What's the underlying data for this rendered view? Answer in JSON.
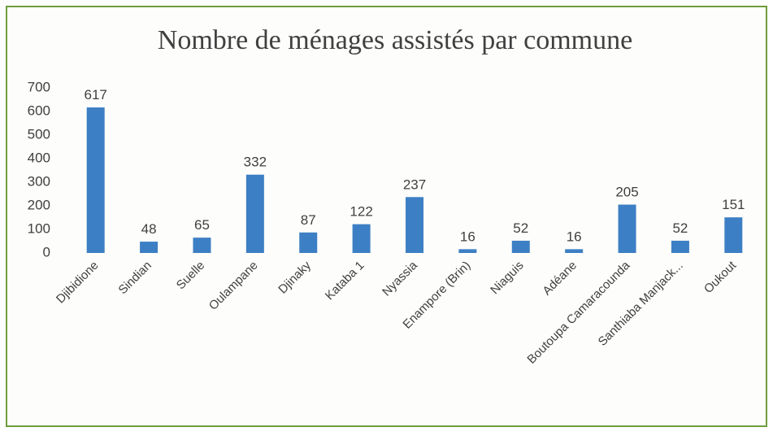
{
  "chart_data": {
    "type": "bar",
    "title": "Nombre de ménages assistés par commune",
    "categories": [
      "Djibidione",
      "Sindian",
      "Suelle",
      "Oulampane",
      "Djinaky",
      "Kataba 1",
      "Nyassia",
      "Enampore (Brin)",
      "Niaguis",
      "Adéane",
      "Boutoupa Camaracounda",
      "Santhiaba Manjack...",
      "Oukout"
    ],
    "values": [
      617,
      48,
      65,
      332,
      87,
      122,
      237,
      16,
      52,
      16,
      205,
      52,
      151
    ],
    "color": "#3d7fc4",
    "ylim": [
      0,
      700
    ],
    "yticks": [
      0,
      100,
      200,
      300,
      400,
      500,
      600,
      700
    ],
    "grid": false
  }
}
